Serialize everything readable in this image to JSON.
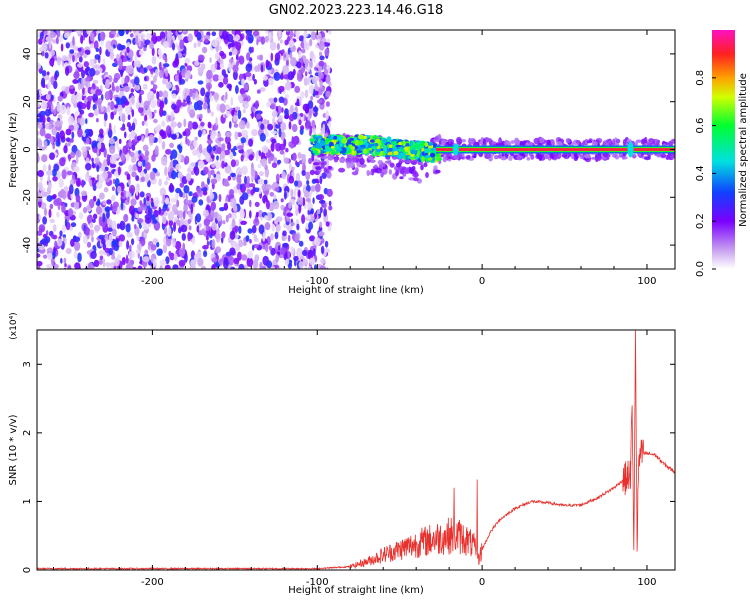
{
  "title": "GN02.2023.223.14.46.G18",
  "chart_data": [
    {
      "type": "heatmap",
      "title": "GN02.2023.223.14.46.G18",
      "xlabel": "Height of straight line (km)",
      "ylabel": "Frequency (Hz)",
      "xlim": [
        -270,
        117
      ],
      "ylim": [
        -50,
        50
      ],
      "x_ticks": [
        -200,
        -100,
        0,
        100
      ],
      "x_tick_labels": [
        "-200",
        "-100",
        "0",
        "100"
      ],
      "y_ticks": [
        -40,
        -20,
        0,
        20,
        40
      ],
      "y_tick_labels": [
        "-40",
        "-20",
        "0",
        "20",
        "40"
      ],
      "colorbar": {
        "label": "Normalized spectral amplitude",
        "range": [
          0,
          1
        ],
        "ticks": [
          0.0,
          0.2,
          0.4,
          0.6,
          0.8
        ],
        "tick_labels": [
          "0.0",
          "0.2",
          "0.4",
          "0.6",
          "0.8"
        ],
        "colormap": "rainbow (purple-blue-cyan-green-yellow-red-magenta)"
      },
      "regions": [
        {
          "x_range": [
            -270,
            -92
          ],
          "description": "broadband noise across all frequencies",
          "amplitude": 0.15
        },
        {
          "x_range": [
            -103,
            -25
          ],
          "description": "signal band near 0 Hz, drifting slightly negative",
          "amplitude": 0.6
        },
        {
          "x_range": [
            -25,
            117
          ],
          "description": "narrow strong line at 0 Hz",
          "amplitude": 0.92
        }
      ]
    },
    {
      "type": "line",
      "xlabel": "Height of straight line (km)",
      "ylabel": "SNR (10 * v/v)",
      "y_multiplier": "(x10⁴)",
      "xlim": [
        -270,
        117
      ],
      "ylim": [
        0,
        3.5
      ],
      "x_ticks": [
        -200,
        -100,
        0,
        100
      ],
      "x_tick_labels": [
        "-200",
        "-100",
        "0",
        "100"
      ],
      "y_ticks": [
        0,
        1,
        2,
        3
      ],
      "y_tick_labels": [
        "0",
        "1",
        "2",
        "3"
      ],
      "color": "#e8312d",
      "series": [
        {
          "x": [
            -270,
            -250,
            -200,
            -150,
            -100,
            -80,
            -70,
            -60,
            -50,
            -40,
            -30,
            -20,
            -15,
            -10,
            -5,
            -2,
            0,
            5,
            10,
            20,
            30,
            40,
            50,
            60,
            70,
            80,
            85,
            88,
            90,
            91,
            92,
            93,
            94,
            95,
            96,
            98,
            100,
            105,
            110,
            117
          ],
          "y": [
            0.02,
            0.02,
            0.02,
            0.02,
            0.02,
            0.05,
            0.12,
            0.22,
            0.3,
            0.38,
            0.45,
            0.5,
            0.5,
            0.45,
            0.35,
            0.15,
            0.3,
            0.55,
            0.72,
            0.9,
            1.0,
            0.98,
            0.94,
            0.95,
            1.05,
            1.2,
            1.3,
            1.35,
            1.4,
            2.4,
            0.2,
            3.5,
            0.3,
            1.6,
            1.65,
            1.7,
            1.7,
            1.68,
            1.55,
            1.43
          ]
        }
      ],
      "spikes": [
        {
          "x": -17,
          "y": 1.2
        },
        {
          "x": -3,
          "y": 1.32
        },
        {
          "x": 93,
          "y": 3.5
        },
        {
          "x": 91,
          "y": 2.4
        }
      ]
    }
  ]
}
